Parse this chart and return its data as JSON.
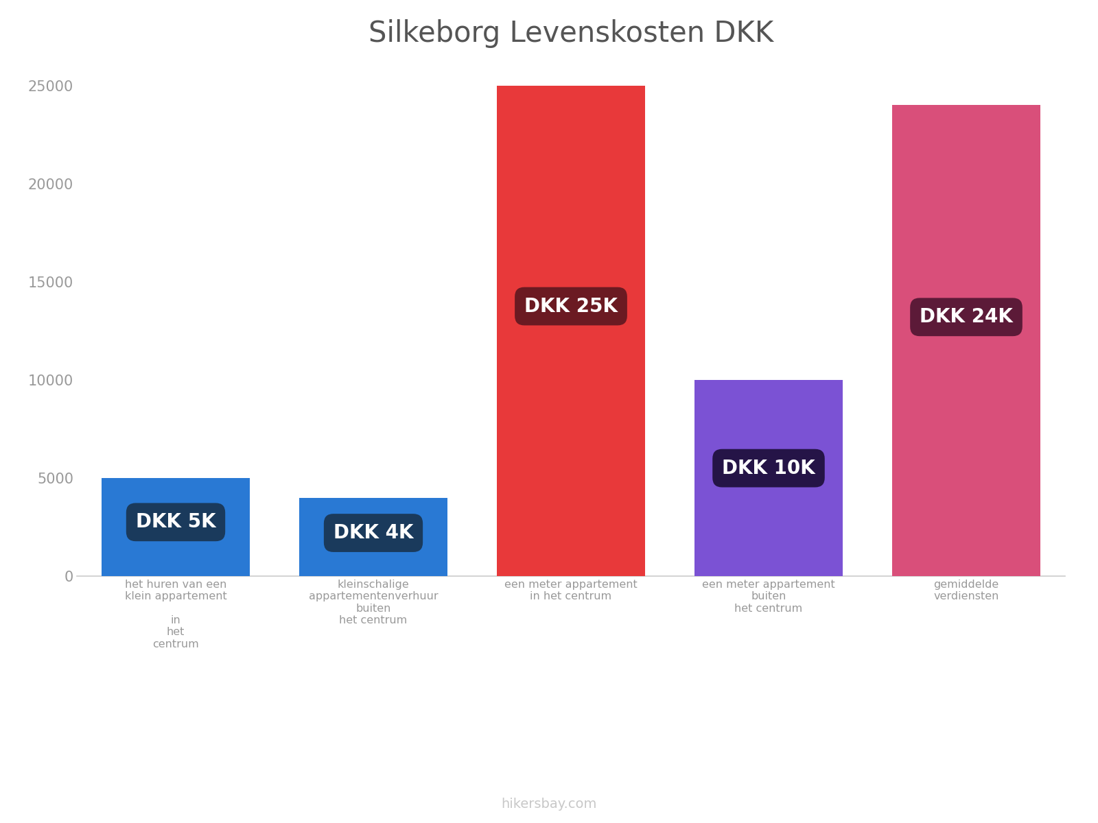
{
  "title": "Silkeborg Levenskosten DKK",
  "categories": [
    "het huren van een\nklein appartement\n\nin\nhet\ncentrum",
    "kleinschalige\nappartementenverhuur\nbuiten\nhet centrum",
    "een meter appartement\nin het centrum",
    "een meter appartement\nbuiten\nhet centrum",
    "gemiddelde\nverdiensten"
  ],
  "values": [
    5000,
    4000,
    25000,
    10000,
    24000
  ],
  "bar_colors": [
    "#2979d4",
    "#2979d4",
    "#e8393a",
    "#7b52d4",
    "#d94f7a"
  ],
  "label_bg_colors": [
    "#1a3a5c",
    "#1a3a5c",
    "#6b1a22",
    "#251447",
    "#5c1a38"
  ],
  "labels": [
    "DKK 5K",
    "DKK 4K",
    "DKK 25K",
    "DKK 10K",
    "DKK 24K"
  ],
  "ylim": [
    0,
    26000
  ],
  "yticks": [
    0,
    5000,
    10000,
    15000,
    20000,
    25000
  ],
  "background_color": "#ffffff",
  "title_fontsize": 30,
  "label_fontsize": 20,
  "tick_fontsize": 15,
  "watermark": "hikersbay.com",
  "watermark_color": "#c8c8c8"
}
